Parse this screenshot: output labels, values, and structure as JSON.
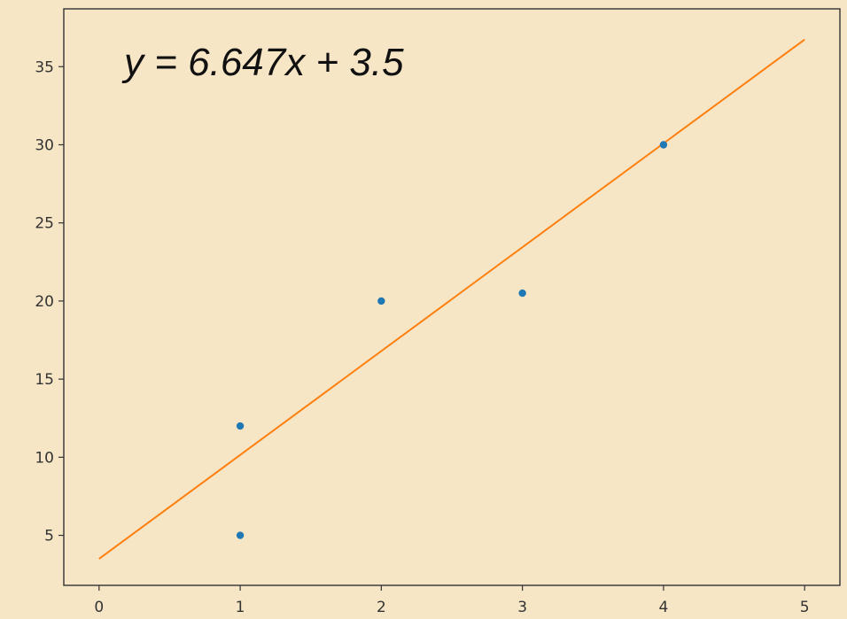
{
  "chart_data": {
    "type": "scatter",
    "title": "",
    "xlabel": "",
    "ylabel": "",
    "xlim": [
      -0.25,
      5.25
    ],
    "ylim": [
      1.8,
      38.7
    ],
    "xticks": [
      0,
      1,
      2,
      3,
      4,
      5
    ],
    "yticks": [
      5,
      10,
      15,
      20,
      25,
      30,
      35
    ],
    "grid": false,
    "legend": "none",
    "annotation": "y = 6.647x + 3.5",
    "series": [
      {
        "type": "scatter",
        "color": "#1f77b4",
        "points": [
          {
            "x": 1,
            "y": 5
          },
          {
            "x": 1,
            "y": 12
          },
          {
            "x": 2,
            "y": 20
          },
          {
            "x": 3,
            "y": 20.5
          },
          {
            "x": 4,
            "y": 30
          }
        ]
      },
      {
        "type": "line",
        "color": "#ff7f0e",
        "points": [
          {
            "x": 0,
            "y": 3.5
          },
          {
            "x": 5,
            "y": 36.735
          }
        ]
      }
    ],
    "colors": {
      "background": "#f6e6c6",
      "axis": "#333333"
    }
  }
}
